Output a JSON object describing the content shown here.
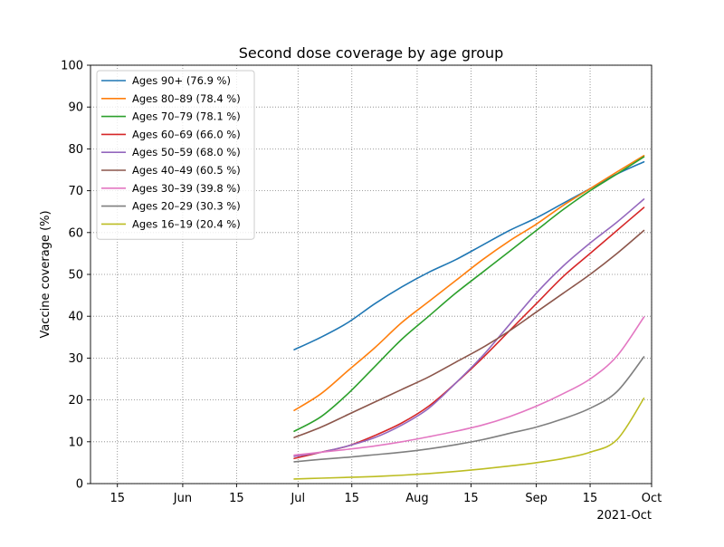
{
  "chart_data": {
    "type": "line",
    "title": "Second dose coverage by age group",
    "xlabel": "",
    "ylabel": "Vaccine coverage (%)",
    "x_offset_label": "2021-Oct",
    "xlim": [
      "2021-05-08",
      "2021-10-01"
    ],
    "ylim": [
      0,
      100
    ],
    "grid": true,
    "legend_position": "upper left",
    "x_ticks": [
      {
        "date": "2021-05-15",
        "label": "15"
      },
      {
        "date": "2021-06-01",
        "label": "Jun"
      },
      {
        "date": "2021-06-15",
        "label": "15"
      },
      {
        "date": "2021-07-01",
        "label": "Jul"
      },
      {
        "date": "2021-07-15",
        "label": "15"
      },
      {
        "date": "2021-08-01",
        "label": "Aug"
      },
      {
        "date": "2021-08-15",
        "label": "15"
      },
      {
        "date": "2021-09-01",
        "label": "Sep"
      },
      {
        "date": "2021-09-15",
        "label": "15"
      },
      {
        "date": "2021-10-01",
        "label": "Oct"
      }
    ],
    "y_ticks": [
      0,
      10,
      20,
      30,
      40,
      50,
      60,
      70,
      80,
      90,
      100
    ],
    "x": [
      "2021-06-30",
      "2021-07-07",
      "2021-07-14",
      "2021-07-21",
      "2021-07-28",
      "2021-08-04",
      "2021-08-11",
      "2021-08-18",
      "2021-08-25",
      "2021-09-01",
      "2021-09-08",
      "2021-09-15",
      "2021-09-22",
      "2021-09-29"
    ],
    "series": [
      {
        "name": "Ages 90+ (76.9 %)",
        "color": "#1f77b4",
        "values": [
          32.0,
          35.0,
          38.5,
          43.0,
          47.0,
          50.5,
          53.5,
          57.0,
          60.5,
          63.5,
          67.0,
          70.5,
          74.0,
          76.9
        ]
      },
      {
        "name": "Ages 80–89 (78.4 %)",
        "color": "#ff7f0e",
        "values": [
          17.5,
          21.5,
          27.0,
          32.5,
          38.5,
          43.5,
          48.5,
          53.5,
          58.0,
          62.0,
          66.5,
          70.5,
          74.5,
          78.4
        ]
      },
      {
        "name": "Ages 70–79 (78.1 %)",
        "color": "#2ca02c",
        "values": [
          12.5,
          16.0,
          21.5,
          28.0,
          34.5,
          40.0,
          45.5,
          50.5,
          55.5,
          60.5,
          65.5,
          70.0,
          74.0,
          78.1
        ]
      },
      {
        "name": "Ages 60–69 (66.0 %)",
        "color": "#d62728",
        "values": [
          6.0,
          7.5,
          9.0,
          11.5,
          14.5,
          18.5,
          24.0,
          30.0,
          36.5,
          43.0,
          49.5,
          55.0,
          60.5,
          66.0
        ]
      },
      {
        "name": "Ages 50–59 (68.0 %)",
        "color": "#9467bd",
        "values": [
          6.5,
          7.5,
          9.0,
          11.0,
          14.0,
          18.0,
          24.0,
          30.5,
          38.0,
          45.5,
          52.0,
          57.5,
          62.5,
          68.0
        ]
      },
      {
        "name": "Ages 40–49 (60.5 %)",
        "color": "#8c564b",
        "values": [
          11.0,
          13.5,
          16.5,
          19.5,
          22.5,
          25.5,
          29.0,
          32.5,
          36.5,
          41.0,
          45.5,
          50.0,
          55.0,
          60.5
        ]
      },
      {
        "name": "Ages 30–39 (39.8 %)",
        "color": "#e377c2",
        "values": [
          6.8,
          7.5,
          8.2,
          9.0,
          10.0,
          11.2,
          12.5,
          14.0,
          16.0,
          18.5,
          21.5,
          25.0,
          30.5,
          39.8
        ]
      },
      {
        "name": "Ages 20–29 (30.3 %)",
        "color": "#7f7f7f",
        "values": [
          5.2,
          5.8,
          6.3,
          6.9,
          7.5,
          8.3,
          9.3,
          10.5,
          12.0,
          13.5,
          15.5,
          18.0,
          22.0,
          30.3
        ]
      },
      {
        "name": "Ages 16–19 (20.4 %)",
        "color": "#bcbd22",
        "values": [
          1.1,
          1.3,
          1.5,
          1.7,
          2.0,
          2.4,
          2.9,
          3.5,
          4.2,
          5.0,
          6.0,
          7.5,
          10.5,
          20.4
        ]
      }
    ]
  }
}
